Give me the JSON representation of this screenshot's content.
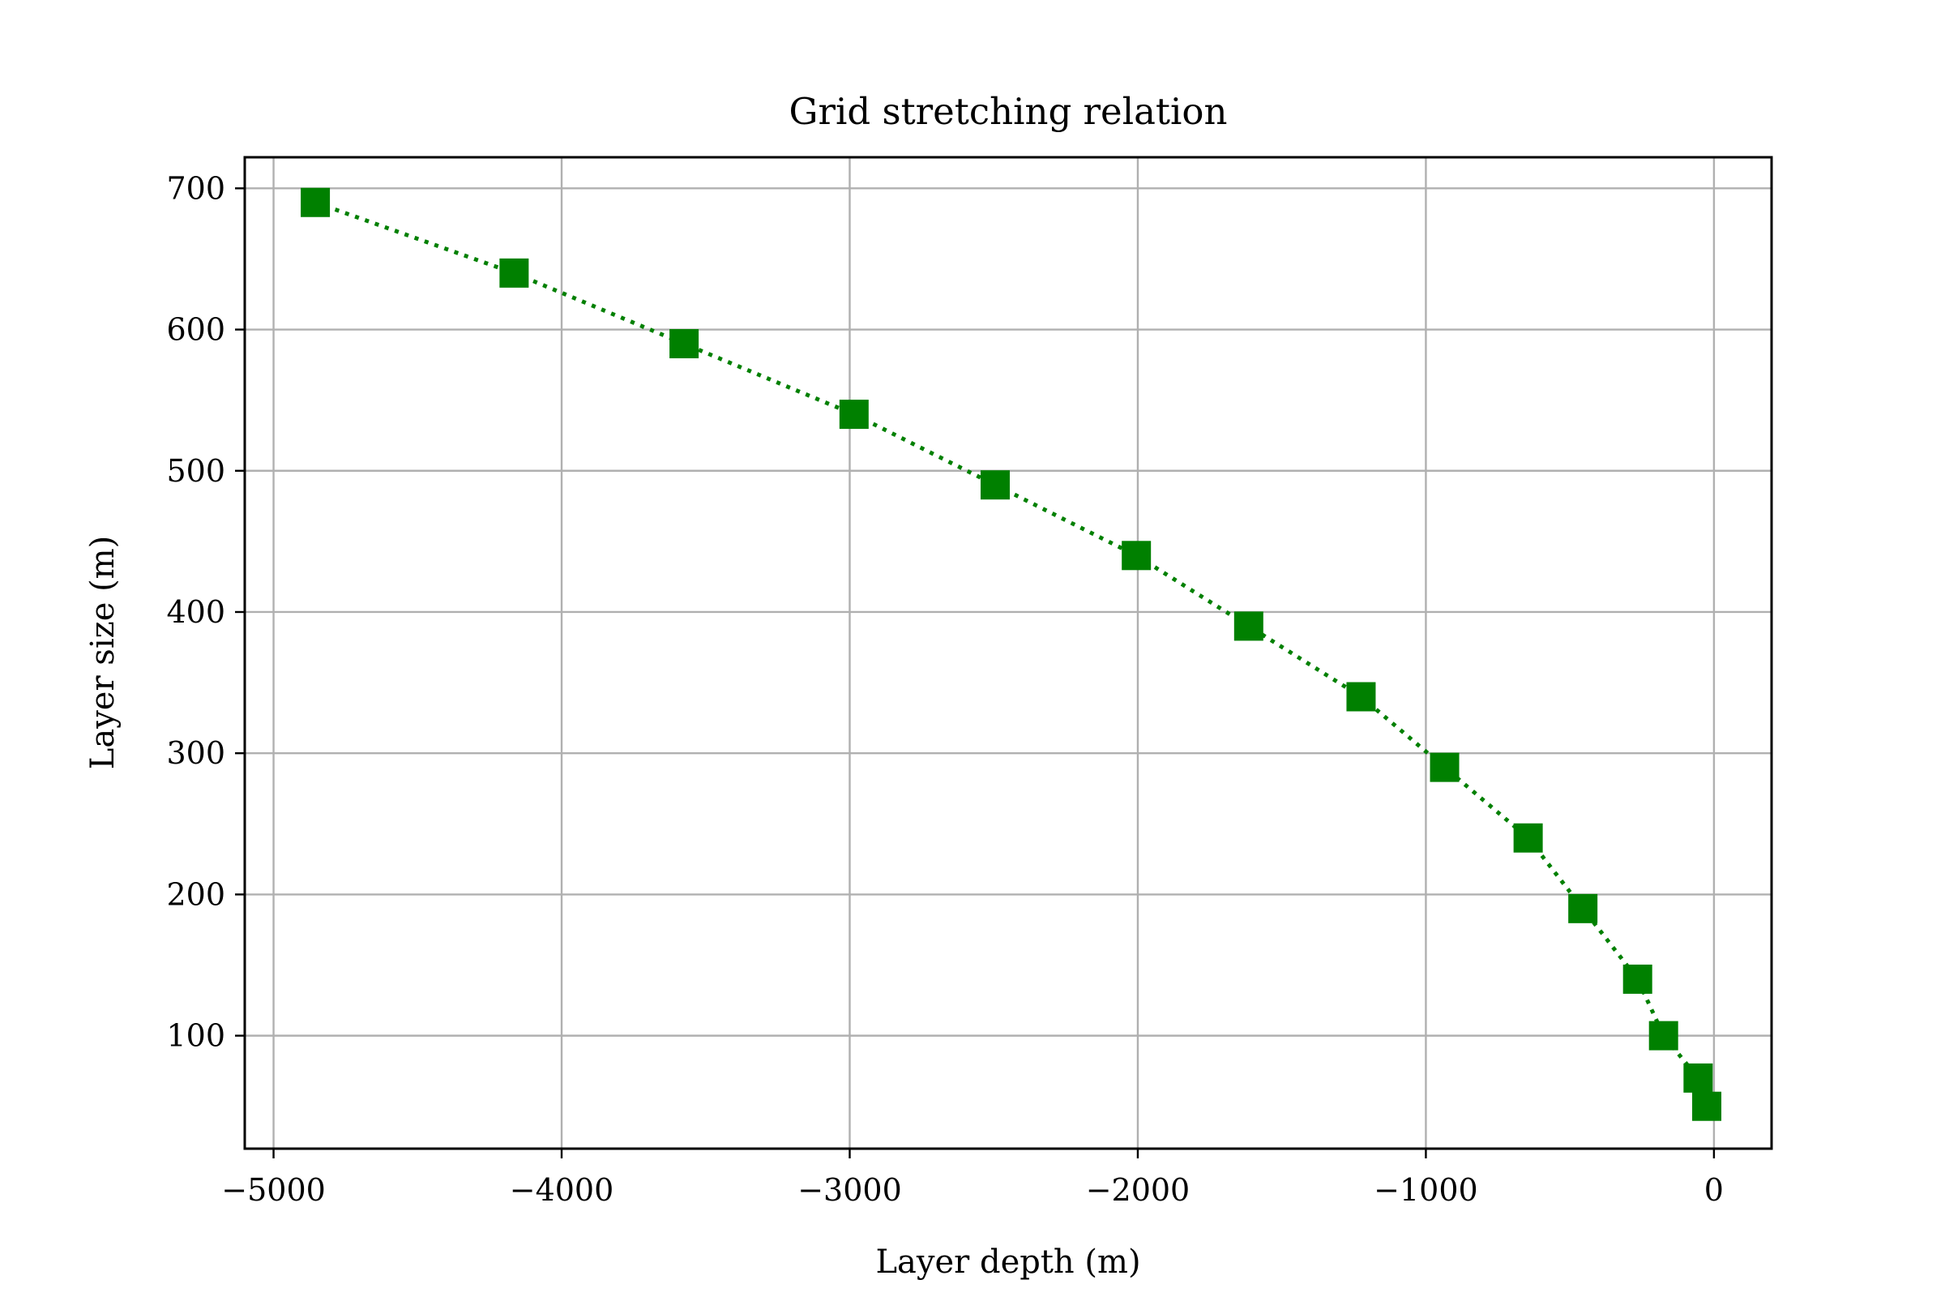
{
  "chart_data": {
    "type": "scatter",
    "title": "Grid stretching relation",
    "xlabel": "Layer depth (m)",
    "ylabel": "Layer size (m)",
    "xlim": [
      -5100,
      200
    ],
    "ylim": [
      20,
      722
    ],
    "xticks": [
      -5000,
      -4000,
      -3000,
      -2000,
      -1000,
      0
    ],
    "xtick_labels": [
      "−5000",
      "−4000",
      "−3000",
      "−2000",
      "−1000",
      "0"
    ],
    "yticks": [
      100,
      200,
      300,
      400,
      500,
      600,
      700
    ],
    "ytick_labels": [
      "100",
      "200",
      "300",
      "400",
      "500",
      "600",
      "700"
    ],
    "grid": true,
    "legend": "none",
    "series": [
      {
        "color": "#008000",
        "marker": "square",
        "linestyle": "dotted",
        "x": [
          -4855,
          -4165,
          -3575,
          -2985,
          -2495,
          -2005,
          -1615,
          -1225,
          -935,
          -645,
          -455,
          -265,
          -175,
          -55,
          -25
        ],
        "y": [
          690,
          640,
          590,
          540,
          490,
          440,
          390,
          340,
          290,
          240,
          190,
          140,
          100,
          70,
          50
        ]
      }
    ]
  }
}
